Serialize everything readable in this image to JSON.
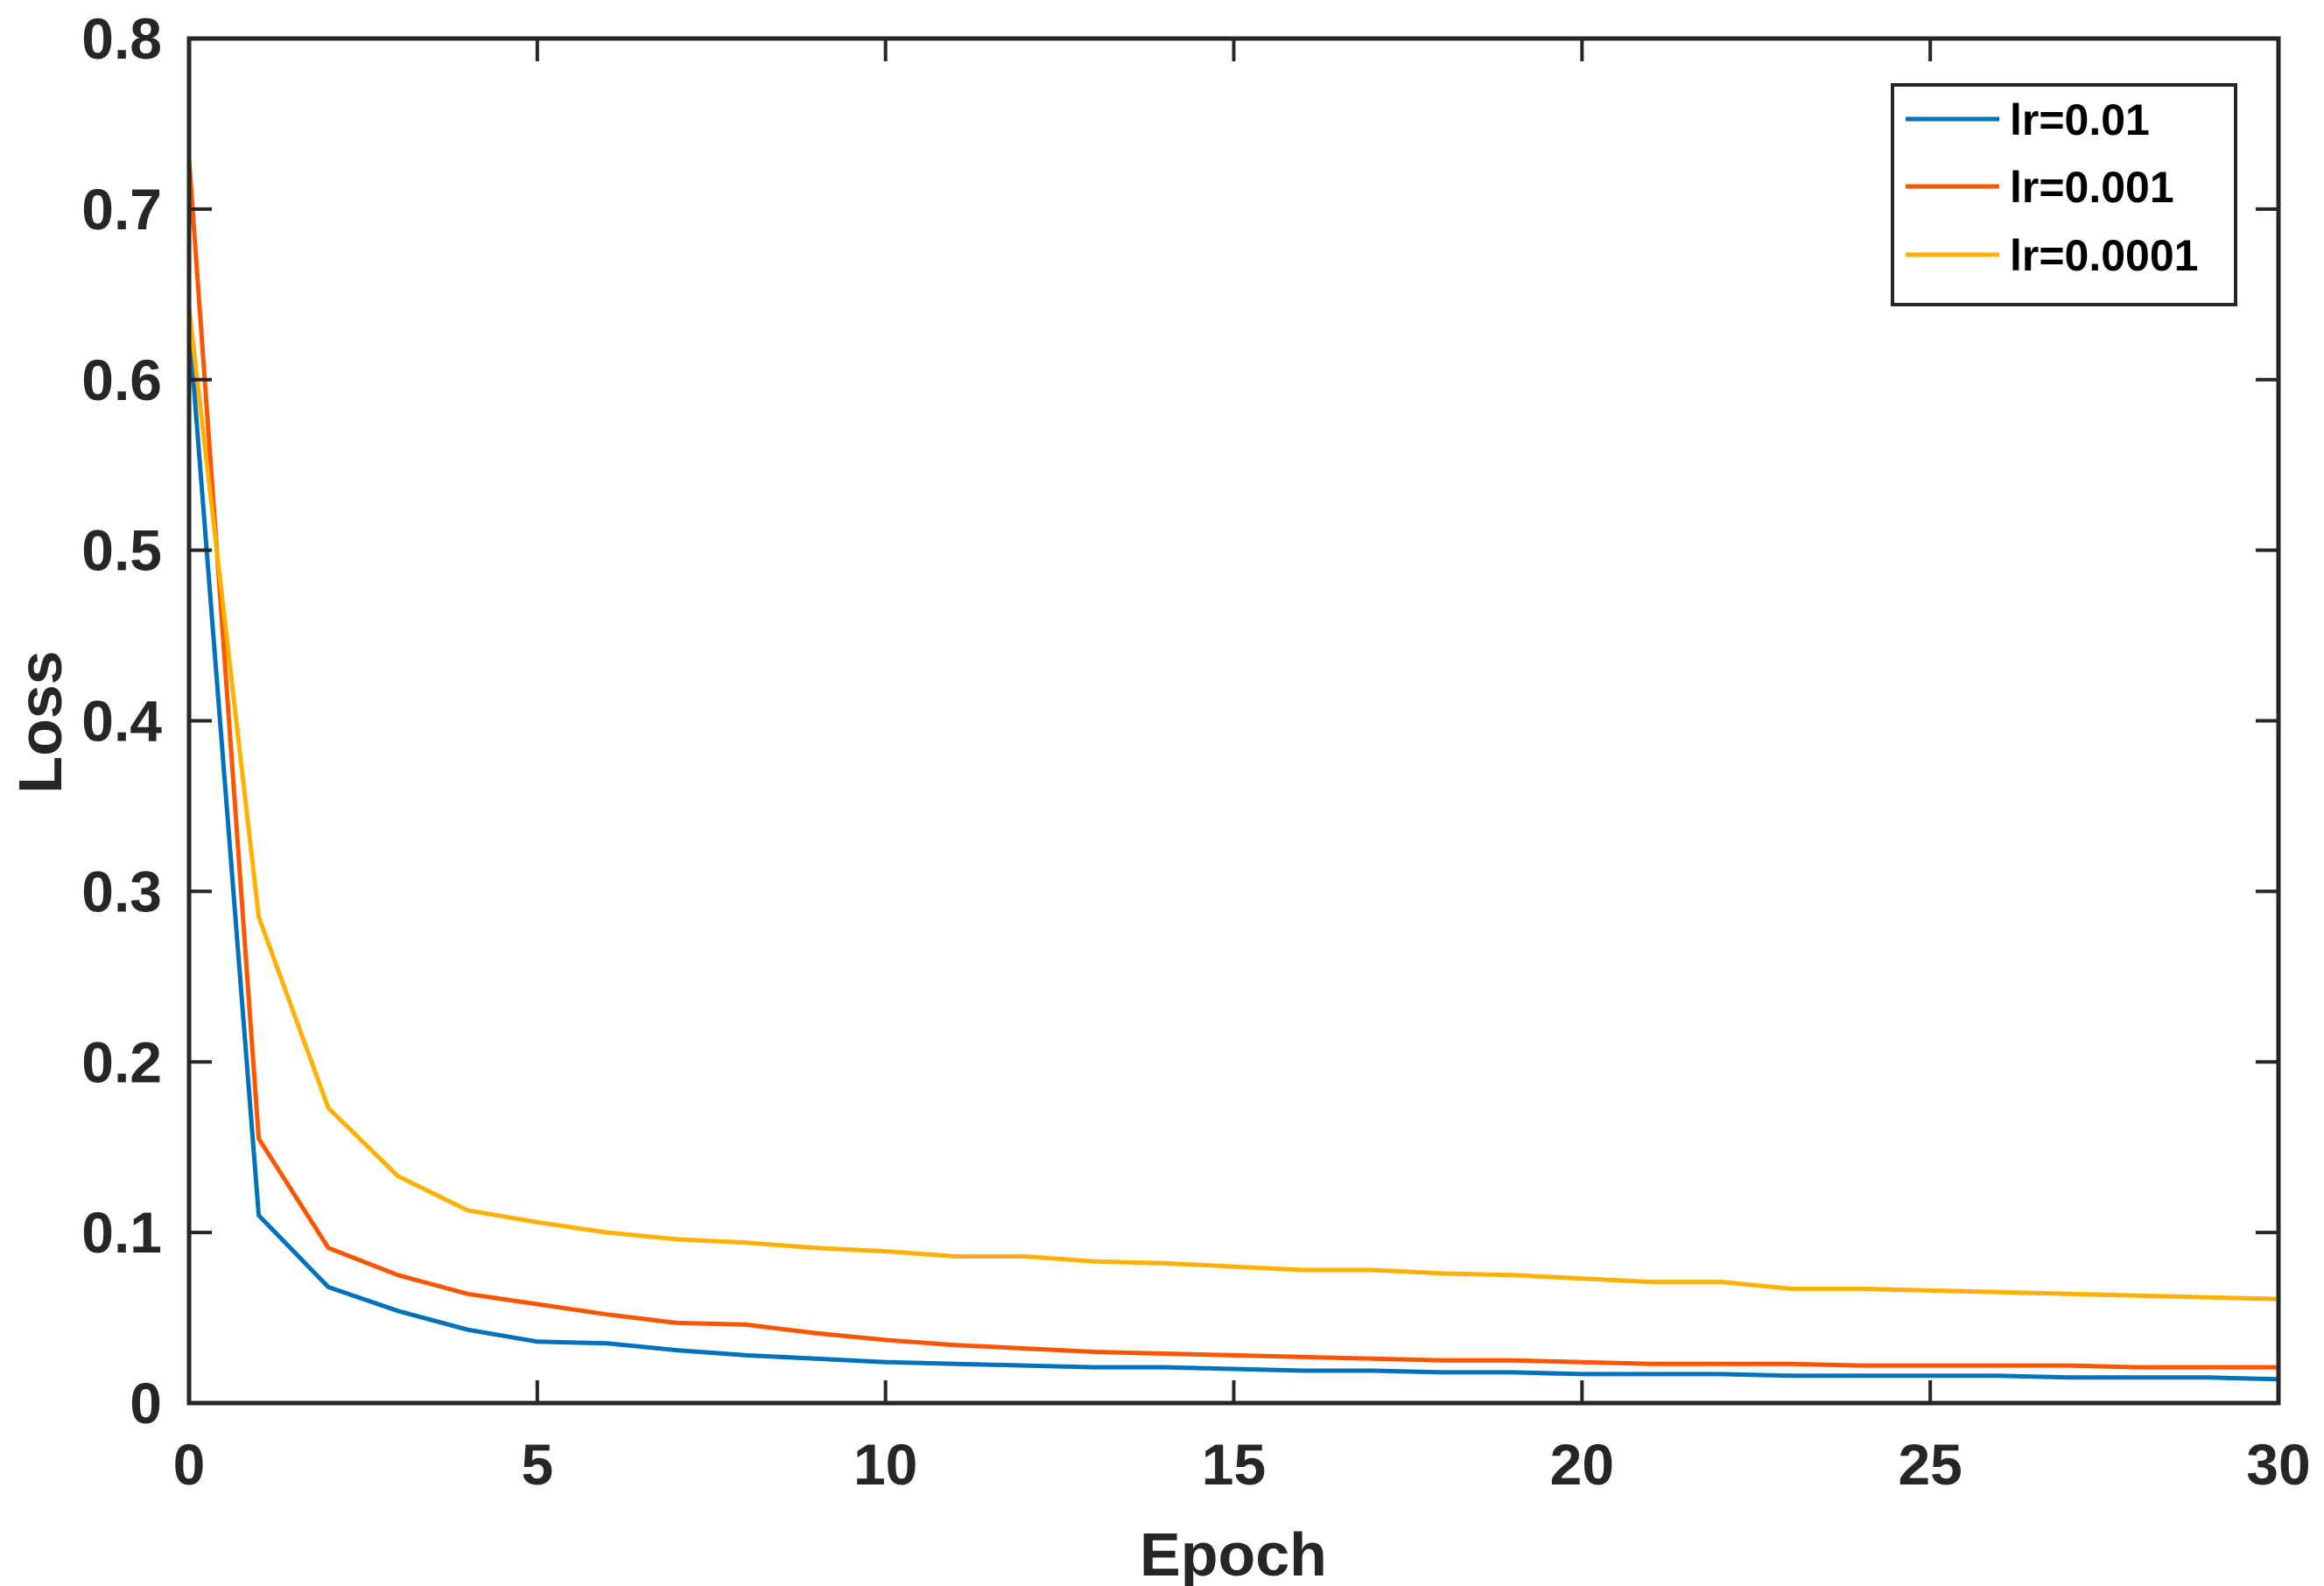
{
  "chart_data": {
    "type": "line",
    "title": "",
    "xlabel": "Epoch",
    "ylabel": "Loss",
    "xlim": [
      0,
      30
    ],
    "ylim": [
      0,
      0.8
    ],
    "xticks": [
      0,
      5,
      10,
      15,
      20,
      25,
      30
    ],
    "xtick_labels": [
      "0",
      "5",
      "10",
      "15",
      "20",
      "25",
      "30"
    ],
    "yticks": [
      0,
      0.1,
      0.2,
      0.3,
      0.4,
      0.5,
      0.6,
      0.7,
      0.8
    ],
    "ytick_labels": [
      "0",
      "0.1",
      "0.2",
      "0.3",
      "0.4",
      "0.5",
      "0.6",
      "0.7",
      "0.8"
    ],
    "grid": false,
    "legend_position": "upper right",
    "x": [
      0,
      1,
      2,
      3,
      4,
      5,
      6,
      7,
      8,
      9,
      10,
      11,
      12,
      13,
      14,
      15,
      16,
      17,
      18,
      19,
      20,
      21,
      22,
      23,
      24,
      25,
      26,
      27,
      28,
      29,
      30
    ],
    "series": [
      {
        "name": "lr=0.01",
        "color": "#0072BD",
        "values": [
          0.632,
          0.11,
          0.068,
          0.054,
          0.043,
          0.036,
          0.035,
          0.031,
          0.028,
          0.026,
          0.024,
          0.023,
          0.022,
          0.021,
          0.021,
          0.02,
          0.019,
          0.019,
          0.018,
          0.018,
          0.017,
          0.017,
          0.017,
          0.016,
          0.016,
          0.016,
          0.016,
          0.015,
          0.015,
          0.015,
          0.014
        ]
      },
      {
        "name": "lr=0.001",
        "color": "#FF5500",
        "values": [
          0.729,
          0.155,
          0.091,
          0.075,
          0.064,
          0.058,
          0.052,
          0.047,
          0.046,
          0.041,
          0.037,
          0.034,
          0.032,
          0.03,
          0.029,
          0.028,
          0.027,
          0.026,
          0.025,
          0.025,
          0.024,
          0.023,
          0.023,
          0.023,
          0.022,
          0.022,
          0.022,
          0.022,
          0.021,
          0.021,
          0.021
        ]
      },
      {
        "name": "lr=0.0001",
        "color": "#FFB000",
        "values": [
          0.642,
          0.285,
          0.173,
          0.133,
          0.113,
          0.106,
          0.1,
          0.096,
          0.094,
          0.091,
          0.089,
          0.086,
          0.086,
          0.083,
          0.082,
          0.08,
          0.078,
          0.078,
          0.076,
          0.075,
          0.073,
          0.071,
          0.071,
          0.067,
          0.067,
          0.066,
          0.065,
          0.064,
          0.063,
          0.062,
          0.061
        ]
      }
    ]
  }
}
